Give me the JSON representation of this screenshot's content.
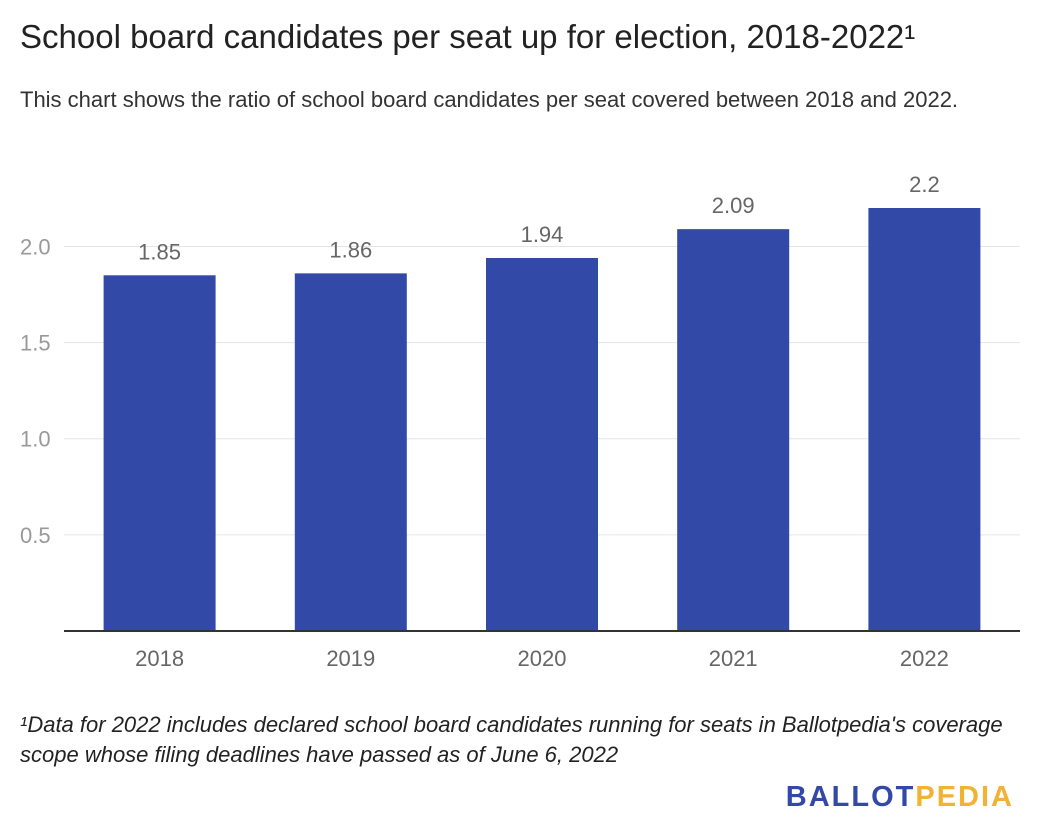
{
  "title": "School board candidates per seat up for election, 2018-2022¹",
  "subtitle": "This chart shows the ratio of school board candidates per seat covered between 2018 and 2022.",
  "footnote": "¹Data for 2022 includes declared school board candidates running for seats in Ballotpedia's coverage scope whose filing deadlines have passed as of June 6, 2022",
  "logo": {
    "part1": "BALLOT",
    "part2": "PEDIA"
  },
  "colors": {
    "bar": "#3349a8",
    "grid": "#e5e5e5",
    "axis": "#333333",
    "logo_primary": "#3349a8",
    "logo_accent": "#f2b233"
  },
  "chart_data": {
    "type": "bar",
    "title": "School board candidates per seat up for election, 2018-2022¹",
    "xlabel": "",
    "ylabel": "",
    "categories": [
      "2018",
      "2019",
      "2020",
      "2021",
      "2022"
    ],
    "values": [
      1.85,
      1.86,
      1.94,
      2.09,
      2.2
    ],
    "value_labels": [
      "1.85",
      "1.86",
      "1.94",
      "2.09",
      "2.2"
    ],
    "ylim": [
      0,
      2.2
    ],
    "yticks": [
      0.5,
      1.0,
      1.5,
      2.0
    ],
    "ytick_labels": [
      "0.5",
      "1.0",
      "1.5",
      "2.0"
    ],
    "grid": true,
    "legend": "none"
  }
}
